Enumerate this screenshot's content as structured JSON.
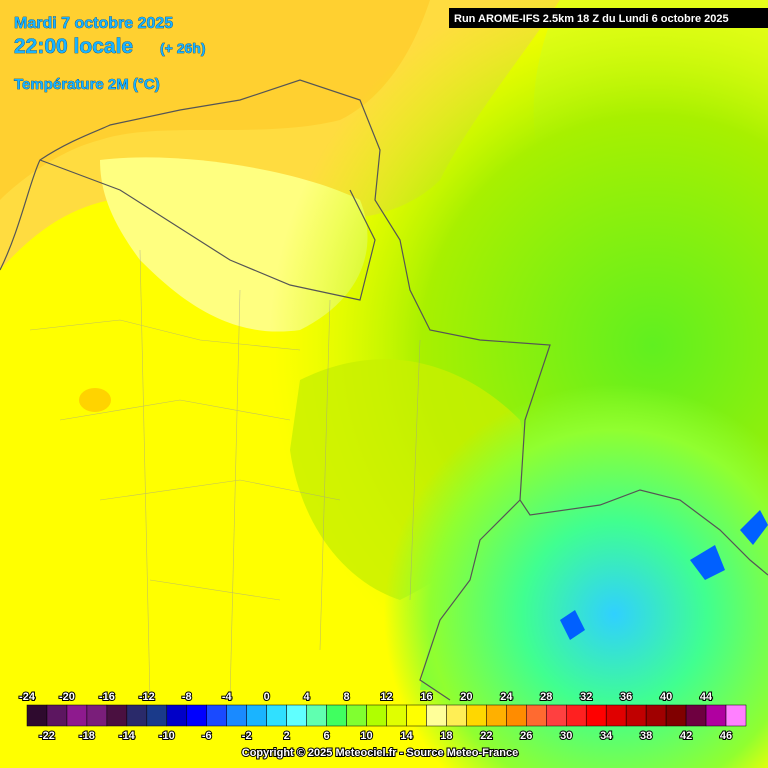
{
  "header": {
    "date": "Mardi 7 octobre 2025",
    "time": "22:00 locale",
    "offset": "(+ 26h)",
    "variable": "Température 2M (°C)",
    "run": "Run AROME-IFS 2.5km 18 Z du Lundi 6 octobre 2025"
  },
  "legend": {
    "values": [
      -24,
      -22,
      -20,
      -18,
      -16,
      -14,
      -12,
      -10,
      -8,
      -6,
      -4,
      -2,
      0,
      2,
      4,
      6,
      8,
      10,
      12,
      14,
      16,
      18,
      20,
      22,
      24,
      26,
      28,
      30,
      32,
      34,
      36,
      38,
      40,
      42,
      44,
      46
    ],
    "colors": [
      "#2e0a2e",
      "#5c1660",
      "#8e1a8e",
      "#7a1e7a",
      "#4a1040",
      "#2a2a6a",
      "#1a3a8a",
      "#0000c8",
      "#0000ff",
      "#1a4aff",
      "#1a8aff",
      "#1ab4ff",
      "#30e0ff",
      "#60ffff",
      "#60ffb0",
      "#40ff60",
      "#80ff30",
      "#b0ff00",
      "#e0ff00",
      "#ffff00",
      "#ffff99",
      "#ffee55",
      "#ffd700",
      "#ffb000",
      "#ff8c00",
      "#ff6a30",
      "#ff4040",
      "#ff2020",
      "#ff0000",
      "#e00000",
      "#c00000",
      "#a00000",
      "#800000",
      "#6e0040",
      "#b000a0",
      "#ff80ff"
    ]
  },
  "footer": {
    "copyright": "Copyright © 2025 Meteociel.fr - Source Meteo-France"
  }
}
